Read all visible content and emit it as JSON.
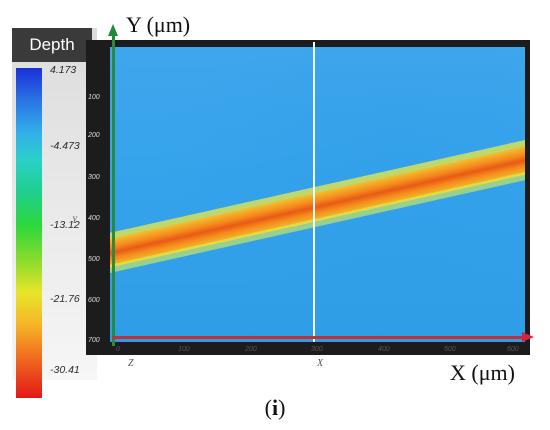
{
  "depth_legend": {
    "title": "Depth",
    "ticks": [
      "4.173",
      "-4.473",
      "-13.12",
      "-21.76",
      "-30.41"
    ],
    "side_label": "Y",
    "colors": [
      "#1b2fd8",
      "#33b1e8",
      "#2ed83a",
      "#e7e62a",
      "#e21818"
    ]
  },
  "axes": {
    "y_label": "Y (μm)",
    "x_label": "X (μm)",
    "y_ticks": [
      "100",
      "200",
      "300",
      "400",
      "500",
      "600",
      "700"
    ],
    "x_ticks": [
      "100",
      "200",
      "300",
      "400",
      "500",
      "600"
    ],
    "origin_label": "0",
    "under_x_left": "Z",
    "under_x_mid": "X"
  },
  "caption": {
    "open": "(",
    "letter": "i",
    "close": ")"
  }
}
